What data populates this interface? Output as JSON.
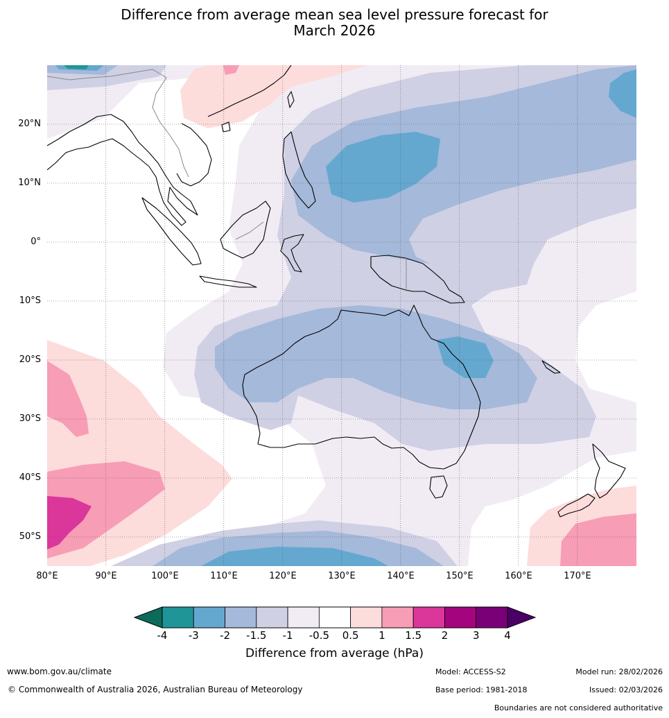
{
  "header": {
    "title_line1": "Difference from average mean sea level pressure forecast for",
    "title_line2": "March 2026"
  },
  "map": {
    "lat_labels": [
      "20°N",
      "10°N",
      "0°",
      "10°S",
      "20°S",
      "30°S",
      "40°S",
      "50°S"
    ],
    "lon_labels": [
      "80°E",
      "90°E",
      "100°E",
      "110°E",
      "120°E",
      "130°E",
      "140°E",
      "150°E",
      "160°E",
      "170°E"
    ],
    "extent": {
      "lon": [
        80,
        180
      ],
      "lat": [
        -55,
        30
      ]
    }
  },
  "legend": {
    "title": "Difference from average (hPa)",
    "ticks": [
      "-4",
      "-3",
      "-2",
      "-1.5",
      "-1",
      "-0.5",
      "0.5",
      "1",
      "1.5",
      "2",
      "3",
      "4"
    ],
    "colors": [
      "#0d6b5c",
      "#1f9597",
      "#64a8cf",
      "#a5b9da",
      "#cfd0e4",
      "#f1ecf4",
      "#ffffff",
      "#fddcdc",
      "#f79db6",
      "#db369a",
      "#a5047f",
      "#7a0077",
      "#4a0066"
    ]
  },
  "footer": {
    "website": "www.bom.gov.au/climate",
    "copyright": "© Commonwealth of Australia 2026, Australian Bureau of Meteorology",
    "model": "Model: ACCESS-S2",
    "model_run": "Model run: 28/02/2026",
    "base_period": "Base period: 1981-2018",
    "issued": "Issued: 02/03/2026",
    "disclaimer": "Boundaries are not considered authoritative"
  }
}
